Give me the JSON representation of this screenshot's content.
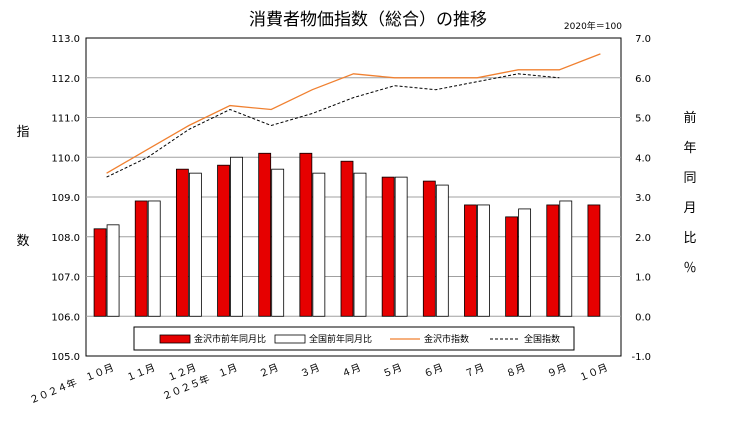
{
  "chart_data": {
    "type": "bar",
    "title": "消費者物価指数（総合）の推移",
    "note": "2020年＝100",
    "left_axis_label": [
      "指",
      "数"
    ],
    "right_axis_label": [
      "前",
      "年",
      "同",
      "月",
      "比",
      "％"
    ],
    "left_ylim": [
      105.0,
      113.0
    ],
    "left_ticks": [
      "105.0",
      "106.0",
      "107.0",
      "108.0",
      "109.0",
      "110.0",
      "111.0",
      "112.0",
      "113.0"
    ],
    "right_ylim": [
      -1.0,
      7.0
    ],
    "right_ticks": [
      "-1.0",
      "0.0",
      "1.0",
      "2.0",
      "3.0",
      "4.0",
      "5.0",
      "6.0",
      "7.0"
    ],
    "categories": [
      "２０２４年　１０月",
      "１１月",
      "１２月",
      "２０２５年　１月",
      "２月",
      "３月",
      "４月",
      "５月",
      "６月",
      "７月",
      "８月",
      "９月",
      "１０月"
    ],
    "bar_baseline": 0.0,
    "grid": "horizontal",
    "legend_position": "bottom",
    "series": [
      {
        "name": "金沢市前年同月比",
        "type": "bar",
        "axis": "right",
        "color": "#e60000",
        "values": [
          2.2,
          2.9,
          3.7,
          3.8,
          4.1,
          4.1,
          3.9,
          3.5,
          3.4,
          2.8,
          2.5,
          2.8,
          2.8
        ]
      },
      {
        "name": "全国前年同月比",
        "type": "bar",
        "axis": "right",
        "color": "#ffffff",
        "values": [
          2.3,
          2.9,
          3.6,
          4.0,
          3.7,
          3.6,
          3.6,
          3.5,
          3.3,
          2.8,
          2.7,
          2.9,
          null
        ]
      },
      {
        "name": "金沢市指数",
        "type": "line",
        "axis": "left",
        "color": "#f08030",
        "dash": "solid",
        "values": [
          109.6,
          110.2,
          110.8,
          111.3,
          111.2,
          111.7,
          112.1,
          112.0,
          112.0,
          112.0,
          112.2,
          112.2,
          112.6
        ]
      },
      {
        "name": "全国指数",
        "type": "line",
        "axis": "left",
        "color": "#000000",
        "dash": "dashed",
        "values": [
          109.5,
          110.0,
          110.7,
          111.2,
          110.8,
          111.1,
          111.5,
          111.8,
          111.7,
          111.9,
          112.1,
          112.0,
          null
        ]
      }
    ]
  }
}
